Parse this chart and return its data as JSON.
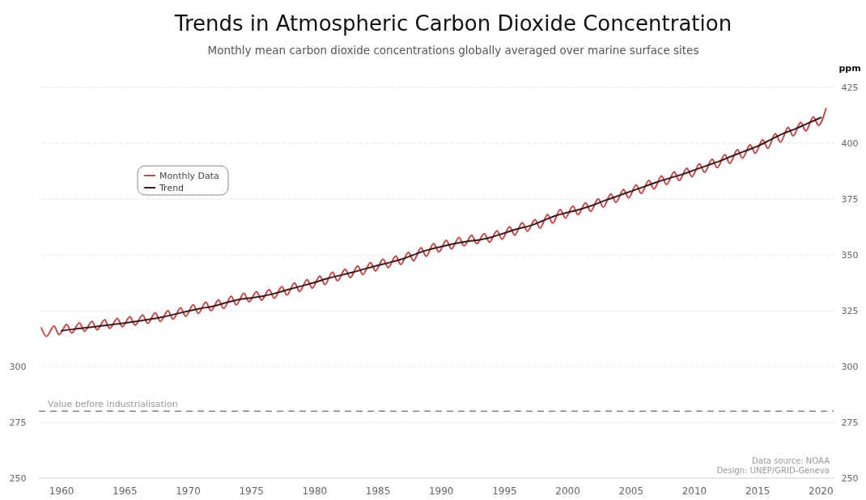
{
  "chart_data": {
    "type": "line",
    "title": "Trends in Atmospheric Carbon Dioxide Concentration",
    "subtitle": "Monthly mean carbon dioxide concentrations globally averaged over marine surface sites",
    "y2label": "ppm",
    "annotations": [
      "Data source: NOAA",
      "Design: UNEP/GRID-Geneva"
    ],
    "xlim": [
      1958.2,
      2021
    ],
    "xticks": [
      1960,
      1965,
      1970,
      1975,
      1980,
      1985,
      1990,
      1995,
      2000,
      2005,
      2010,
      2015,
      2020
    ],
    "ylim": [
      250,
      425
    ],
    "yticks": [
      250,
      275,
      300
    ],
    "y2lim": [
      250,
      425
    ],
    "y2ticks": [
      250,
      275,
      300,
      325,
      350,
      375,
      400,
      425
    ],
    "grid": "y",
    "legend": "top left",
    "marker": "none",
    "ref_lines": [
      {
        "axis": "y",
        "value": 280,
        "label": "Value before industrialisation",
        "color": "#888888",
        "line_style": "dashed"
      }
    ],
    "series": [
      {
        "name": "Monthly Data",
        "color": "#c0474a",
        "x": [
          1958.4,
          1958.8,
          1959.4,
          1959.8,
          1960.4,
          1960.8,
          1961.4,
          1961.8,
          1962.4,
          1962.8,
          1963.4,
          1963.8,
          1964.4,
          1964.8,
          1965.4,
          1965.8,
          1966.4,
          1966.8,
          1967.4,
          1967.8,
          1968.4,
          1968.8,
          1969.4,
          1969.8,
          1970.4,
          1970.8,
          1971.4,
          1971.8,
          1972.4,
          1972.8,
          1973.4,
          1973.8,
          1974.4,
          1974.8,
          1975.4,
          1975.8,
          1976.4,
          1976.8,
          1977.4,
          1977.8,
          1978.4,
          1978.8,
          1979.4,
          1979.8,
          1980.4,
          1980.8,
          1981.4,
          1981.8,
          1982.4,
          1982.8,
          1983.4,
          1983.8,
          1984.4,
          1984.8,
          1985.4,
          1985.8,
          1986.4,
          1986.8,
          1987.4,
          1987.8,
          1988.4,
          1988.8,
          1989.4,
          1989.8,
          1990.4,
          1990.8,
          1991.4,
          1991.8,
          1992.4,
          1992.8,
          1993.4,
          1993.8,
          1994.4,
          1994.8,
          1995.4,
          1995.8,
          1996.4,
          1996.8,
          1997.4,
          1997.8,
          1998.4,
          1998.8,
          1999.4,
          1999.8,
          2000.4,
          2000.8,
          2001.4,
          2001.8,
          2002.4,
          2002.8,
          2003.4,
          2003.8,
          2004.4,
          2004.8,
          2005.4,
          2005.8,
          2006.4,
          2006.8,
          2007.4,
          2007.8,
          2008.4,
          2008.8,
          2009.4,
          2009.8,
          2010.4,
          2010.8,
          2011.4,
          2011.8,
          2012.4,
          2012.8,
          2013.4,
          2013.8,
          2014.4,
          2014.8,
          2015.4,
          2015.8,
          2016.4,
          2016.8,
          2017.4,
          2017.8,
          2018.4,
          2018.8,
          2019.4,
          2019.8,
          2020.4
        ],
        "values": [
          317.3,
          313.5,
          318.1,
          314.3,
          318.8,
          315.0,
          319.6,
          315.8,
          320.2,
          316.4,
          320.9,
          317.1,
          321.6,
          317.8,
          322.3,
          318.5,
          323.1,
          319.3,
          324.0,
          320.2,
          325.0,
          321.2,
          326.3,
          322.5,
          327.6,
          323.8,
          328.8,
          325.0,
          329.8,
          326.0,
          331.4,
          327.6,
          332.8,
          329.0,
          333.5,
          329.7,
          334.4,
          330.6,
          335.8,
          332.0,
          337.4,
          333.6,
          338.9,
          335.1,
          340.5,
          336.7,
          342.2,
          338.4,
          343.6,
          339.8,
          345.0,
          341.2,
          346.6,
          342.8,
          348.1,
          344.3,
          349.5,
          345.7,
          351.1,
          347.3,
          353.2,
          349.4,
          355.1,
          351.3,
          356.5,
          352.7,
          357.8,
          354.0,
          358.8,
          355.0,
          359.5,
          355.7,
          360.8,
          357.0,
          362.6,
          358.8,
          364.4,
          360.6,
          365.8,
          362.0,
          368.0,
          364.2,
          370.3,
          366.5,
          371.8,
          368.0,
          373.3,
          369.5,
          375.1,
          371.3,
          377.3,
          373.5,
          379.3,
          375.5,
          381.3,
          377.5,
          383.3,
          379.5,
          385.3,
          381.5,
          387.1,
          383.3,
          388.8,
          385.0,
          390.8,
          387.0,
          392.8,
          389.0,
          394.8,
          391.0,
          397.1,
          393.3,
          399.3,
          395.5,
          401.5,
          397.7,
          404.3,
          400.5,
          407.1,
          403.3,
          409.3,
          405.5,
          411.8,
          408.0,
          415.5
        ]
      },
      {
        "name": "Trend",
        "color": "#3a1a1a",
        "x": [
          1960,
          1961,
          1962,
          1963,
          1964,
          1965,
          1966,
          1967,
          1968,
          1969,
          1970,
          1971,
          1972,
          1973,
          1974,
          1975,
          1976,
          1977,
          1978,
          1979,
          1980,
          1981,
          1982,
          1983,
          1984,
          1985,
          1986,
          1987,
          1988,
          1989,
          1990,
          1991,
          1992,
          1993,
          1994,
          1995,
          1996,
          1997,
          1998,
          1999,
          2000,
          2001,
          2002,
          2003,
          2004,
          2005,
          2006,
          2007,
          2008,
          2009,
          2010,
          2011,
          2012,
          2013,
          2014,
          2015,
          2016,
          2017,
          2018,
          2019,
          2020
        ],
        "values": [
          316,
          316.8,
          317.4,
          318.1,
          318.8,
          319.5,
          320.3,
          321.2,
          322.2,
          323.5,
          324.8,
          326,
          327,
          328.6,
          330,
          330.7,
          331.6,
          333,
          334.6,
          336.1,
          337.7,
          339.4,
          340.8,
          342.2,
          343.8,
          345.3,
          346.7,
          348.3,
          350.4,
          352.3,
          353.7,
          355,
          356,
          356.7,
          358,
          359.8,
          361.6,
          363,
          365.2,
          367.5,
          369,
          370.5,
          372.3,
          374.5,
          376.5,
          378.5,
          380.5,
          382.5,
          384.3,
          386,
          388,
          390,
          392,
          394.3,
          396.5,
          398.7,
          401.5,
          404.3,
          406.5,
          409,
          411.5
        ]
      }
    ]
  }
}
